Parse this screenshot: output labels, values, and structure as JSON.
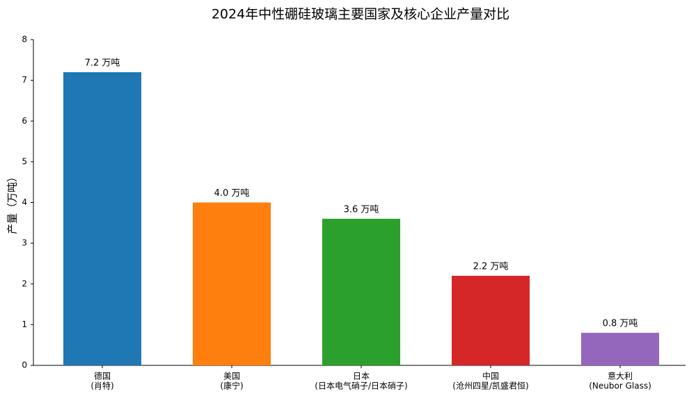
{
  "chart_data": {
    "type": "bar",
    "title": "2024年中性硼硅玻璃主要国家及核心企业产量对比",
    "y_label": "产量（万吨）",
    "categories": [
      [
        "德国",
        "(肖特)"
      ],
      [
        "美国",
        "(康宁)"
      ],
      [
        "日本",
        "(日本电气硝子/日本硝子)"
      ],
      [
        "中国",
        "(沧州四星/凯盛君恒)"
      ],
      [
        "意大利",
        "(Neubor Glass)"
      ]
    ],
    "values": [
      7.2,
      4.0,
      3.6,
      2.2,
      0.8
    ],
    "value_labels": [
      "7.2 万吨",
      "4.0 万吨",
      "3.6 万吨",
      "2.2 万吨",
      "0.8 万吨"
    ],
    "colors": [
      "#1f77b4",
      "#ff7f0e",
      "#2ca02c",
      "#d62728",
      "#9467bd"
    ],
    "ylim": [
      0,
      8
    ],
    "yticks": [
      0,
      1,
      2,
      3,
      4,
      5,
      6,
      7,
      8
    ]
  }
}
